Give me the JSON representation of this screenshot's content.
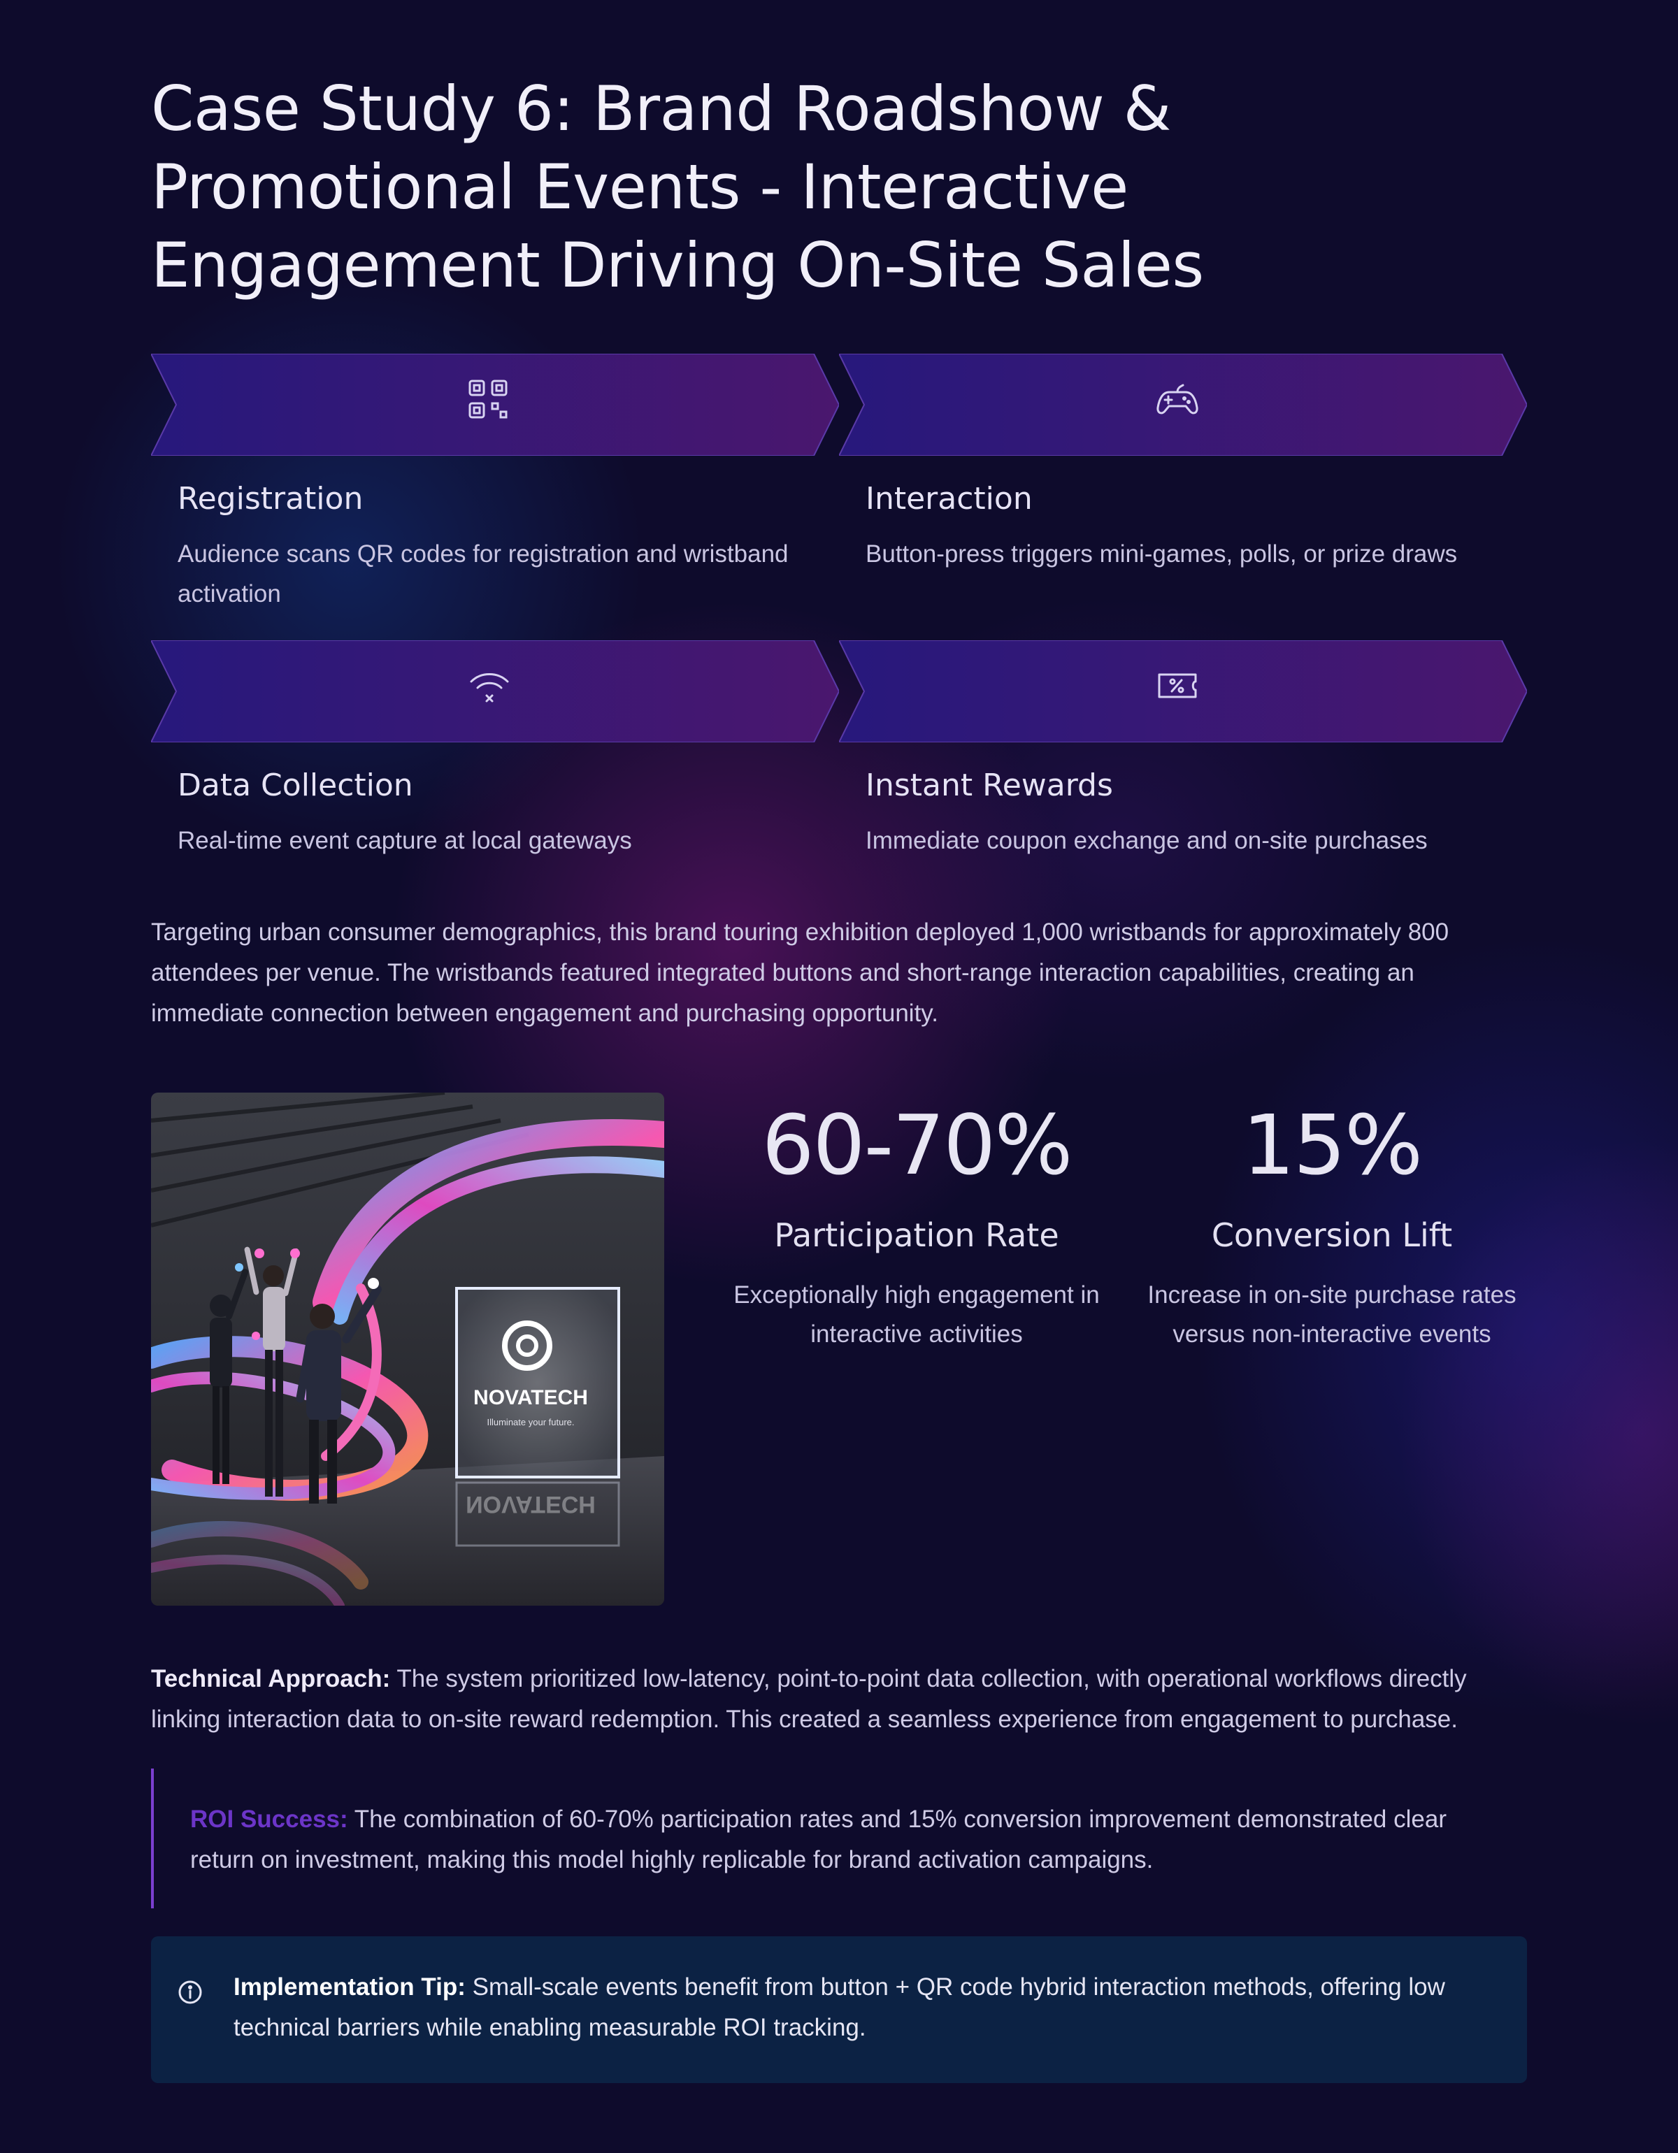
{
  "title": "Case Study 6: Brand Roadshow & Promotional Events - Interactive Engagement Driving On-Site Sales",
  "steps": [
    {
      "icon": "qr-code-icon",
      "title": "Registration",
      "desc": "Audience scans QR codes for registration and wristband activation"
    },
    {
      "icon": "gamepad-icon",
      "title": "Interaction",
      "desc": "Button-press triggers mini-games, polls, or prize draws"
    },
    {
      "icon": "wifi-icon",
      "title": "Data Collection",
      "desc": "Real-time event capture at local gateways"
    },
    {
      "icon": "ticket-percent-icon",
      "title": "Instant Rewards",
      "desc": "Immediate coupon exchange and on-site purchases"
    }
  ],
  "intro": "Targeting urban consumer demographics, this brand touring exhibition deployed 1,000 wristbands for approximately 800 attendees per venue. The wristbands featured integrated buttons and short-range interaction capabilities, creating an immediate connection between engagement and purchasing opportunity.",
  "photo": {
    "brand": "NOVATECH",
    "tagline": "Illuminate your future.",
    "reflection": "NOVATECH"
  },
  "stats": [
    {
      "value": "60-70%",
      "label": "Participation Rate",
      "desc": "Exceptionally high engagement in interactive activities"
    },
    {
      "value": "15%",
      "label": "Conversion Lift",
      "desc": "Increase in on-site purchase rates versus non-interactive events"
    }
  ],
  "technical": {
    "label": "Technical Approach:",
    "text": " The system prioritized low-latency, point-to-point data collection, with operational workflows directly linking interaction data to on-site reward redemption. This created a seamless experience from engagement to purchase."
  },
  "roi": {
    "label": "ROI Success:",
    "text": " The combination of 60-70% participation rates and 15% conversion improvement demonstrated clear return on investment, making this model highly replicable for brand activation campaigns."
  },
  "tip": {
    "icon": "info-icon",
    "label": "Implementation Tip:",
    "text": " Small-scale events benefit from button + QR code hybrid interaction methods, offering low technical barriers while enabling measurable ROI tracking."
  },
  "colors": {
    "background": "#0e0b2c",
    "chevron_start": "#2a1a80",
    "chevron_end": "#4a1670",
    "roi_accent": "#6c35c8",
    "tip_background": "#0c2244"
  }
}
